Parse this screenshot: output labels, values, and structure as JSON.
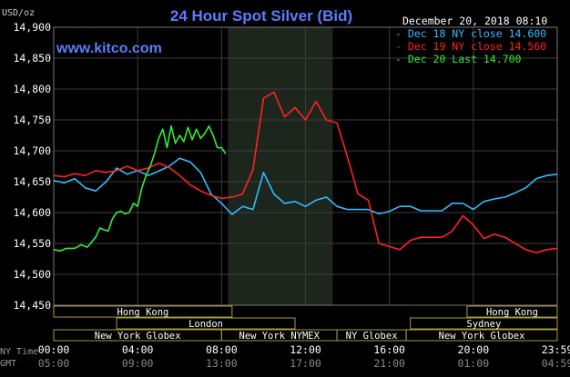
{
  "chart_data": {
    "type": "line",
    "title": "24 Hour Spot Silver (Bid)",
    "unit_label": "USD/oz",
    "date_stamp": "December 20, 2018 08:10",
    "watermark": "www.kitco.com",
    "ylim": [
      14.45,
      14.9
    ],
    "y_ticks": [
      "14,900",
      "14,850",
      "14,800",
      "14,750",
      "14,700",
      "14,650",
      "14,600",
      "14,550",
      "14,500",
      "14,450"
    ],
    "x_ticks_ny": [
      "00:00",
      "04:00",
      "08:00",
      "12:00",
      "16:00",
      "20:00",
      "23:59"
    ],
    "x_ticks_gmt": [
      "05:00",
      "09:00",
      "13:00",
      "17:00",
      "21:00",
      "01:00",
      "04:59"
    ],
    "x_row_labels": [
      "NY Time",
      "GMT"
    ],
    "legend": [
      {
        "label": "Dec 18 NY close 14.600",
        "color": "#33bbff"
      },
      {
        "label": "Dec 19 NY close 14.560",
        "color": "#ff2222"
      },
      {
        "label": "Dec 20 Last 14.700",
        "color": "#33ee33"
      }
    ],
    "sessions": [
      {
        "label": "Hong Kong",
        "start": 0.0,
        "end": 8.5
      },
      {
        "label": "Hong Kong",
        "start": 19.7,
        "end": 24.0
      },
      {
        "label": "London",
        "start": 3.0,
        "end": 11.5
      },
      {
        "label": "Sydney",
        "start": 17.0,
        "end": 24.0
      },
      {
        "label": "New York Globex",
        "start": 0.0,
        "end": 8.0
      },
      {
        "label": "New York NYMEX",
        "start": 8.0,
        "end": 13.5
      },
      {
        "label": "NY Globex",
        "start": 13.5,
        "end": 16.8
      },
      {
        "label": "New York Globex",
        "start": 16.8,
        "end": 24.0
      }
    ],
    "highlight_range_hours": [
      8.3,
      13.3
    ],
    "series": [
      {
        "name": "Dec 18 NY close 14.600",
        "color": "#33bbff",
        "x": [
          0,
          0.5,
          1,
          1.5,
          2,
          2.5,
          3,
          3.5,
          4,
          4.5,
          5,
          5.5,
          6,
          6.5,
          7,
          7.5,
          8,
          8.5,
          9,
          9.5,
          10,
          10.5,
          11,
          11.5,
          12,
          12.5,
          13,
          13.5,
          14,
          14.5,
          15,
          15.5,
          16,
          16.5,
          17,
          17.5,
          18,
          18.5,
          19,
          19.5,
          20,
          20.5,
          21,
          21.5,
          22,
          22.5,
          23,
          23.5,
          24
        ],
        "y": [
          14.652,
          14.648,
          14.655,
          14.64,
          14.635,
          14.65,
          14.672,
          14.662,
          14.668,
          14.66,
          14.667,
          14.675,
          14.688,
          14.682,
          14.665,
          14.63,
          14.615,
          14.597,
          14.61,
          14.605,
          14.665,
          14.63,
          14.615,
          14.618,
          14.61,
          14.62,
          14.625,
          14.61,
          14.605,
          14.605,
          14.605,
          14.598,
          14.602,
          14.61,
          14.61,
          14.603,
          14.603,
          14.603,
          14.615,
          14.615,
          14.605,
          14.618,
          14.622,
          14.625,
          14.632,
          14.64,
          14.655,
          14.66,
          14.662
        ]
      },
      {
        "name": "Dec 19 NY close 14.560",
        "color": "#ff2222",
        "x": [
          0,
          0.5,
          1,
          1.5,
          2,
          2.5,
          3,
          3.5,
          4,
          4.5,
          5,
          5.5,
          6,
          6.5,
          7,
          7.5,
          8,
          8.5,
          9,
          9.5,
          10,
          10.5,
          11,
          11.5,
          12,
          12.5,
          13,
          13.5,
          14,
          14.5,
          15,
          15.5,
          16,
          16.5,
          17,
          17.5,
          18,
          18.5,
          19,
          19.5,
          20,
          20.5,
          21,
          21.5,
          22,
          22.5,
          23,
          23.5,
          24
        ],
        "y": [
          14.66,
          14.658,
          14.663,
          14.66,
          14.668,
          14.665,
          14.668,
          14.675,
          14.668,
          14.672,
          14.68,
          14.673,
          14.66,
          14.645,
          14.635,
          14.628,
          14.623,
          14.625,
          14.63,
          14.67,
          14.785,
          14.795,
          14.755,
          14.77,
          14.75,
          14.78,
          14.75,
          14.745,
          14.69,
          14.63,
          14.62,
          14.55,
          14.545,
          14.54,
          14.555,
          14.56,
          14.56,
          14.56,
          14.57,
          14.595,
          14.58,
          14.558,
          14.565,
          14.56,
          14.55,
          14.54,
          14.535,
          14.54,
          14.542
        ]
      },
      {
        "name": "Dec 20 Last 14.700",
        "color": "#33ee33",
        "x": [
          0,
          0.3,
          0.6,
          1,
          1.3,
          1.6,
          2,
          2.2,
          2.4,
          2.6,
          2.8,
          3,
          3.2,
          3.4,
          3.6,
          3.8,
          4,
          4.2,
          4.4,
          4.6,
          4.8,
          5,
          5.2,
          5.4,
          5.6,
          5.8,
          6,
          6.2,
          6.4,
          6.6,
          6.8,
          7,
          7.2,
          7.4,
          7.6,
          7.8,
          8,
          8.2
        ],
        "y": [
          14.54,
          14.538,
          14.542,
          14.542,
          14.548,
          14.544,
          14.56,
          14.575,
          14.572,
          14.57,
          14.59,
          14.6,
          14.602,
          14.598,
          14.6,
          14.615,
          14.61,
          14.64,
          14.66,
          14.675,
          14.695,
          14.72,
          14.735,
          14.705,
          14.74,
          14.712,
          14.725,
          14.715,
          14.738,
          14.718,
          14.735,
          14.72,
          14.728,
          14.74,
          14.725,
          14.705,
          14.705,
          14.695
        ]
      }
    ]
  }
}
